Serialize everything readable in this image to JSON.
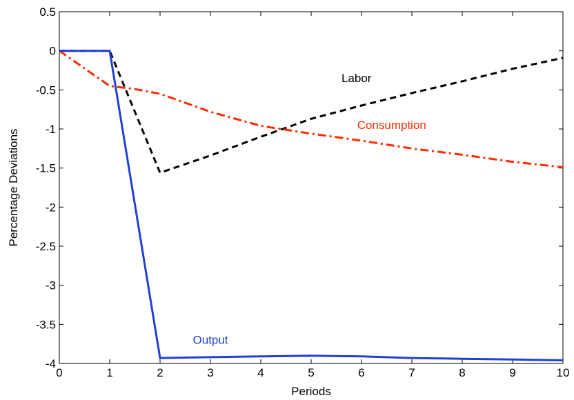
{
  "chart_data": {
    "type": "line",
    "xlabel": "Periods",
    "ylabel": "Percentage Deviations",
    "xlim": [
      0,
      10
    ],
    "ylim": [
      -4,
      0.5
    ],
    "xticks": [
      "0",
      "1",
      "2",
      "3",
      "4",
      "5",
      "6",
      "7",
      "8",
      "9",
      "10"
    ],
    "yticks": [
      "0.5",
      "0",
      "-0.5",
      "-1",
      "-1.5",
      "-2",
      "-2.5",
      "-3",
      "-3.5",
      "-4"
    ],
    "grid": false,
    "series": [
      {
        "name": "Labor",
        "color": "#000000",
        "style": "dashed",
        "x": [
          0,
          1,
          2,
          3,
          4,
          5,
          6,
          7,
          8,
          9,
          10
        ],
        "y": [
          0,
          0,
          -1.56,
          -1.34,
          -1.1,
          -0.87,
          -0.7,
          -0.54,
          -0.39,
          -0.23,
          -0.09
        ]
      },
      {
        "name": "Consumption",
        "color": "#ff2a00",
        "style": "dashdot",
        "x": [
          0,
          1,
          1.5,
          2,
          3,
          4,
          5,
          6,
          7,
          8,
          9,
          10
        ],
        "y": [
          0,
          -0.45,
          -0.49,
          -0.55,
          -0.78,
          -0.96,
          -1.06,
          -1.15,
          -1.25,
          -1.33,
          -1.42,
          -1.49
        ]
      },
      {
        "name": "Output",
        "color": "#1f3fd6",
        "style": "solid",
        "x": [
          0,
          1,
          2,
          3,
          4,
          5,
          6,
          7,
          8,
          9,
          10
        ],
        "y": [
          0,
          0,
          -3.93,
          -3.92,
          -3.91,
          -3.9,
          -3.91,
          -3.93,
          -3.94,
          -3.95,
          -3.96
        ]
      }
    ],
    "labels": [
      {
        "text": "Labor",
        "x": 5.9,
        "y": -0.4,
        "color": "#000000"
      },
      {
        "text": "Consumption",
        "x": 6.6,
        "y": -1.0,
        "color": "#ff2a00"
      },
      {
        "text": "Output",
        "x": 3.0,
        "y": -3.75,
        "color": "#1f3fd6"
      }
    ]
  }
}
